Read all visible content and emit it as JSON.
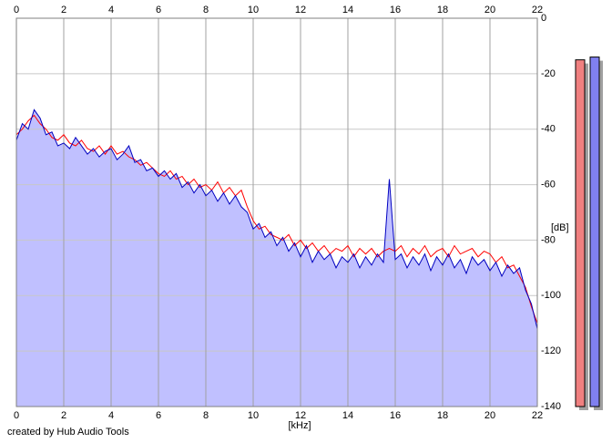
{
  "chart_data": {
    "type": "line",
    "x": [
      0,
      0.25,
      0.5,
      0.75,
      1,
      1.25,
      1.5,
      1.75,
      2,
      2.25,
      2.5,
      2.75,
      3,
      3.25,
      3.5,
      3.75,
      4,
      4.25,
      4.5,
      4.75,
      5,
      5.25,
      5.5,
      5.75,
      6,
      6.25,
      6.5,
      6.75,
      7,
      7.25,
      7.5,
      7.75,
      8,
      8.25,
      8.5,
      8.75,
      9,
      9.25,
      9.5,
      9.75,
      10,
      10.25,
      10.5,
      10.75,
      11,
      11.25,
      11.5,
      11.75,
      12,
      12.25,
      12.5,
      12.75,
      13,
      13.25,
      13.5,
      13.75,
      14,
      14.25,
      14.5,
      14.75,
      15,
      15.25,
      15.5,
      15.75,
      16,
      16.25,
      16.5,
      16.75,
      17,
      17.25,
      17.5,
      17.75,
      18,
      18.25,
      18.5,
      18.75,
      19,
      19.25,
      19.5,
      19.75,
      20,
      20.25,
      20.5,
      20.75,
      21,
      21.25,
      21.5,
      21.75,
      22
    ],
    "series": [
      {
        "color": "#ff0000",
        "values": [
          -42,
          -40,
          -37,
          -35,
          -38,
          -40,
          -43,
          -44,
          -42,
          -45,
          -46,
          -44,
          -47,
          -48,
          -46,
          -49,
          -46,
          -49,
          -48,
          -50,
          -51,
          -53,
          -52,
          -54,
          -56,
          -57,
          -55,
          -58,
          -57,
          -60,
          -58,
          -61,
          -60,
          -62,
          -59,
          -63,
          -61,
          -64,
          -62,
          -68,
          -73,
          -76,
          -75,
          -78,
          -79,
          -80,
          -78,
          -82,
          -80,
          -83,
          -81,
          -84,
          -82,
          -85,
          -83,
          -84,
          -82,
          -86,
          -83,
          -85,
          -83,
          -86,
          -84,
          -83,
          -84,
          -82,
          -86,
          -83,
          -85,
          -82,
          -86,
          -84,
          -83,
          -86,
          -82,
          -85,
          -84,
          -83,
          -86,
          -84,
          -85,
          -88,
          -86,
          -90,
          -89,
          -93,
          -97,
          -104,
          -110
        ]
      },
      {
        "color": "#0000c0",
        "fill": "#c0c0ff",
        "values": [
          -44,
          -38,
          -40,
          -33,
          -36,
          -42,
          -41,
          -46,
          -45,
          -47,
          -43,
          -46,
          -49,
          -47,
          -50,
          -48,
          -47,
          -51,
          -49,
          -46,
          -52,
          -51,
          -55,
          -54,
          -57,
          -55,
          -58,
          -56,
          -61,
          -59,
          -63,
          -60,
          -64,
          -62,
          -66,
          -63,
          -67,
          -64,
          -68,
          -70,
          -76,
          -74,
          -79,
          -77,
          -82,
          -79,
          -84,
          -81,
          -86,
          -82,
          -88,
          -84,
          -87,
          -85,
          -90,
          -86,
          -88,
          -85,
          -90,
          -86,
          -89,
          -85,
          -88,
          -58,
          -87,
          -85,
          -90,
          -86,
          -89,
          -85,
          -91,
          -86,
          -89,
          -85,
          -90,
          -87,
          -92,
          -86,
          -89,
          -87,
          -91,
          -88,
          -93,
          -89,
          -92,
          -90,
          -98,
          -103,
          -112
        ]
      }
    ],
    "levels": [
      {
        "color": "#f08080",
        "value": -15
      },
      {
        "color": "#8080f0",
        "value": -14
      }
    ],
    "xlim": [
      0,
      22
    ],
    "xticks": [
      0,
      2,
      4,
      6,
      8,
      10,
      12,
      14,
      16,
      18,
      20,
      22
    ],
    "ylim": [
      -140,
      0
    ],
    "yticks": [
      0,
      -20,
      -40,
      -60,
      -80,
      -100,
      -120,
      -140
    ],
    "x_label": "[kHz]",
    "y_label": "[dB]",
    "grid": true,
    "footer": "created by Hub Audio Tools"
  }
}
